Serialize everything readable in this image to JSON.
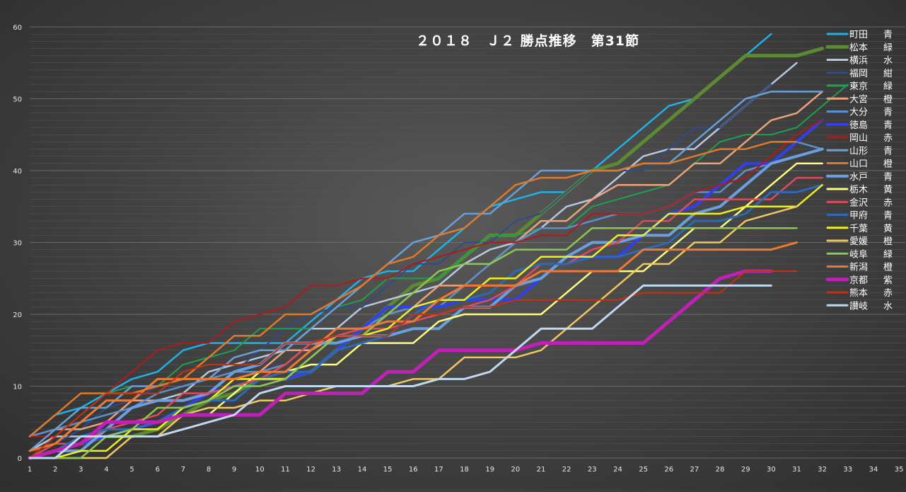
{
  "chart_data": {
    "type": "line",
    "title": "２０１８　Ｊ２ 勝点推移　第31節",
    "xlabel": "",
    "ylabel": "",
    "xlim": [
      1,
      35
    ],
    "ylim": [
      0,
      60
    ],
    "x_ticks": [
      1,
      2,
      3,
      4,
      5,
      6,
      7,
      8,
      9,
      10,
      11,
      12,
      13,
      14,
      15,
      16,
      17,
      18,
      19,
      20,
      21,
      22,
      23,
      24,
      25,
      26,
      27,
      28,
      29,
      30,
      31,
      32,
      33,
      34,
      35
    ],
    "y_ticks": [
      0,
      10,
      20,
      30,
      40,
      50,
      60
    ],
    "grid": "horizontal minor lines every 1, major every 10",
    "legend_position": "right",
    "series": [
      {
        "name": "町田　青",
        "color": "#1eb2e8",
        "width": 2.5,
        "values": [
          3,
          6,
          7,
          9,
          11,
          12,
          15,
          16,
          16,
          16,
          16,
          19,
          22,
          25,
          26,
          26,
          29,
          32,
          35,
          36,
          37,
          37,
          40,
          43,
          46,
          49,
          50,
          53,
          56,
          59
        ]
      },
      {
        "name": "松本　緑",
        "color": "#5c8a32",
        "width": 5,
        "values": [
          0,
          1,
          2,
          3,
          3,
          4,
          6,
          8,
          9,
          11,
          11,
          12,
          15,
          18,
          21,
          24,
          25,
          28,
          31,
          31,
          34,
          37,
          40,
          41,
          44,
          47,
          50,
          53,
          56,
          56,
          56,
          57
        ]
      },
      {
        "name": "横浜　水",
        "color": "#b8c8e0",
        "width": 2.5,
        "values": [
          1,
          3,
          3,
          4,
          7,
          8,
          9,
          12,
          13,
          14,
          15,
          18,
          18,
          21,
          22,
          23,
          24,
          27,
          29,
          30,
          32,
          35,
          36,
          39,
          42,
          43,
          43,
          46,
          49,
          52,
          55
        ]
      },
      {
        "name": "福岡　紺",
        "color": "#2e4c8c",
        "width": 2,
        "values": [
          1,
          2,
          4,
          7,
          8,
          10,
          11,
          11,
          12,
          15,
          18,
          20,
          21,
          21,
          24,
          27,
          27,
          30,
          30,
          33,
          34,
          37,
          40,
          40,
          40,
          43,
          46,
          46,
          49,
          52
        ]
      },
      {
        "name": "東京　緑",
        "color": "#1ea050",
        "width": 2,
        "values": [
          0,
          3,
          6,
          9,
          10,
          10,
          13,
          14,
          15,
          18,
          18,
          18,
          21,
          22,
          25,
          25,
          25,
          28,
          31,
          31,
          32,
          32,
          35,
          36,
          37,
          38,
          41,
          44,
          45,
          45,
          46,
          49,
          52
        ]
      },
      {
        "name": "大宮　橙",
        "color": "#eda27a",
        "width": 2.5,
        "values": [
          3,
          4,
          4,
          5,
          8,
          8,
          8,
          9,
          12,
          12,
          15,
          15,
          17,
          17,
          20,
          21,
          24,
          24,
          27,
          30,
          33,
          33,
          36,
          38,
          38,
          38,
          41,
          41,
          44,
          47,
          48,
          51
        ]
      },
      {
        "name": "大分　青",
        "color": "#5a90d0",
        "width": 2.5,
        "values": [
          3,
          4,
          5,
          6,
          7,
          9,
          10,
          11,
          12,
          12,
          13,
          16,
          17,
          18,
          20,
          21,
          21,
          24,
          27,
          30,
          32,
          32,
          33,
          34,
          34,
          35,
          37,
          37,
          40,
          41,
          44,
          43
        ]
      },
      {
        "name": "徳島　青",
        "color": "#3040f0",
        "width": 4,
        "values": [
          0,
          1,
          2,
          3,
          4,
          5,
          7,
          9,
          10,
          11,
          11,
          12,
          15,
          18,
          21,
          21,
          21,
          22,
          22,
          22,
          25,
          28,
          28,
          28,
          31,
          34,
          35,
          38,
          41,
          41,
          44,
          47
        ]
      },
      {
        "name": "岡山　赤",
        "color": "#b01a1a",
        "width": 2,
        "values": [
          3,
          3,
          6,
          9,
          12,
          15,
          16,
          16,
          19,
          20,
          21,
          24,
          24,
          25,
          25,
          27,
          28,
          29,
          30,
          30,
          31,
          31,
          34,
          34,
          34,
          35,
          37,
          38,
          39,
          42,
          45,
          47
        ]
      },
      {
        "name": "山形　青",
        "color": "#6aa0d8",
        "width": 2.5,
        "values": [
          1,
          4,
          7,
          7,
          10,
          10,
          11,
          11,
          14,
          15,
          15,
          18,
          21,
          24,
          27,
          30,
          31,
          34,
          34,
          37,
          40,
          40,
          40,
          40,
          41,
          41,
          44,
          47,
          50,
          51,
          51,
          51
        ]
      },
      {
        "name": "山口　橙",
        "color": "#e07a2a",
        "width": 2.5,
        "values": [
          3,
          6,
          9,
          9,
          9,
          10,
          11,
          14,
          17,
          17,
          20,
          20,
          22,
          24,
          27,
          28,
          31,
          32,
          35,
          38,
          39,
          39,
          40,
          40,
          41,
          41,
          42,
          43,
          43,
          44,
          44
        ]
      },
      {
        "name": "水戸　青",
        "color": "#6aa0e0",
        "width": 4,
        "values": [
          0,
          1,
          1,
          4,
          7,
          8,
          8,
          9,
          12,
          13,
          16,
          16,
          16,
          17,
          17,
          18,
          18,
          21,
          21,
          24,
          25,
          28,
          30,
          30,
          31,
          31,
          34,
          35,
          38,
          41,
          42,
          43
        ]
      },
      {
        "name": "栃木　黄",
        "color": "#ffff80",
        "width": 2.5,
        "values": [
          0,
          1,
          3,
          4,
          4,
          5,
          6,
          6,
          9,
          12,
          12,
          13,
          13,
          16,
          16,
          16,
          19,
          20,
          20,
          20,
          20,
          23,
          26,
          26,
          26,
          29,
          32,
          32,
          35,
          38,
          41,
          41
        ]
      },
      {
        "name": "金沢　赤",
        "color": "#e04a5a",
        "width": 2.5,
        "values": [
          0,
          2,
          2,
          4,
          5,
          6,
          9,
          9,
          10,
          11,
          13,
          16,
          17,
          18,
          18,
          19,
          20,
          21,
          22,
          24,
          27,
          27,
          29,
          30,
          33,
          33,
          36,
          36,
          36,
          36,
          39,
          39
        ]
      },
      {
        "name": "甲府　青",
        "color": "#2a6ab8",
        "width": 3,
        "values": [
          0,
          1,
          3,
          4,
          4,
          5,
          7,
          8,
          8,
          11,
          12,
          12,
          15,
          16,
          17,
          20,
          22,
          22,
          23,
          26,
          27,
          27,
          28,
          28,
          29,
          30,
          33,
          33,
          34,
          37,
          37,
          38
        ]
      },
      {
        "name": "千葉　黄",
        "color": "#f0f020",
        "width": 2.5,
        "values": [
          0,
          0,
          1,
          1,
          4,
          4,
          7,
          8,
          11,
          11,
          11,
          14,
          17,
          17,
          18,
          21,
          22,
          22,
          25,
          25,
          28,
          28,
          28,
          31,
          31,
          34,
          34,
          34,
          35,
          35,
          35,
          38
        ]
      },
      {
        "name": "愛媛　橙",
        "color": "#f0c860",
        "width": 2.5,
        "values": [
          0,
          0,
          0,
          0,
          3,
          3,
          6,
          7,
          7,
          8,
          8,
          9,
          10,
          10,
          10,
          11,
          11,
          14,
          14,
          14,
          15,
          18,
          21,
          24,
          27,
          27,
          30,
          30,
          33,
          34,
          35
        ]
      },
      {
        "name": "岐阜　緑",
        "color": "#8cc850",
        "width": 2.5,
        "values": [
          0,
          0,
          0,
          3,
          4,
          7,
          7,
          8,
          10,
          10,
          11,
          14,
          17,
          17,
          20,
          23,
          26,
          27,
          27,
          29,
          29,
          29,
          32,
          32,
          32,
          32,
          32,
          32,
          32,
          32,
          32
        ]
      },
      {
        "name": "新潟　橙",
        "color": "#f07830",
        "width": 3,
        "values": [
          1,
          2,
          5,
          8,
          8,
          11,
          11,
          11,
          11,
          12,
          12,
          15,
          18,
          18,
          19,
          19,
          22,
          24,
          24,
          24,
          26,
          26,
          26,
          26,
          29,
          29,
          29,
          29,
          29,
          29,
          30
        ]
      },
      {
        "name": "京都　紫",
        "color": "#c020b8",
        "width": 5,
        "values": [
          0,
          1,
          2,
          5,
          5,
          5,
          6,
          6,
          6,
          6,
          9,
          9,
          9,
          9,
          12,
          12,
          15,
          15,
          15,
          15,
          16,
          16,
          16,
          16,
          16,
          19,
          22,
          25,
          26,
          26
        ]
      },
      {
        "name": "熊本　赤",
        "color": "#c83010",
        "width": 2,
        "values": [
          0,
          3,
          6,
          9,
          9,
          9,
          12,
          13,
          13,
          13,
          16,
          16,
          17,
          17,
          17,
          20,
          20,
          21,
          21,
          22,
          22,
          22,
          22,
          22,
          23,
          23,
          23,
          23,
          26,
          26,
          26
        ]
      },
      {
        "name": "讃岐　水",
        "color": "#c0d8f0",
        "width": 3,
        "values": [
          0,
          0,
          3,
          3,
          3,
          3,
          4,
          5,
          6,
          9,
          10,
          10,
          10,
          10,
          10,
          10,
          11,
          11,
          12,
          15,
          18,
          18,
          18,
          21,
          24,
          24,
          24,
          24,
          24,
          24
        ]
      }
    ]
  }
}
